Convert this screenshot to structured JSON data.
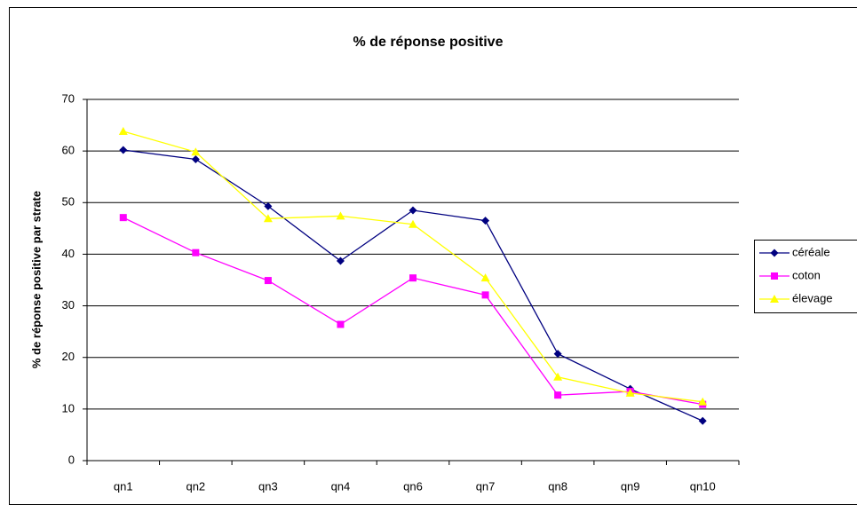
{
  "chart_data": {
    "type": "line",
    "title": "% de réponse positive",
    "y_label": "% de réponse positive par strate",
    "categories": [
      "qn1",
      "qn2",
      "qn3",
      "qn4",
      "qn6",
      "qn7",
      "qn8",
      "qn9",
      "qn10"
    ],
    "series": [
      {
        "name": "céréale",
        "color": "#000080",
        "marker": "diamond",
        "values": [
          60.2,
          58.4,
          49.3,
          38.7,
          48.5,
          46.5,
          20.7,
          13.9,
          7.7
        ]
      },
      {
        "name": "coton",
        "color": "#ff00ff",
        "marker": "square",
        "values": [
          47.1,
          40.3,
          34.9,
          26.4,
          35.4,
          32.1,
          12.7,
          13.4,
          10.9
        ]
      },
      {
        "name": "élevage",
        "color": "#ffff00",
        "marker": "triangle",
        "values": [
          63.8,
          59.8,
          46.9,
          47.4,
          45.8,
          35.4,
          16.2,
          13.1,
          11.4
        ]
      }
    ],
    "ylim": [
      0,
      70
    ],
    "yticks": [
      0,
      10,
      20,
      30,
      40,
      50,
      60,
      70
    ],
    "grid": true,
    "legend": "right"
  }
}
